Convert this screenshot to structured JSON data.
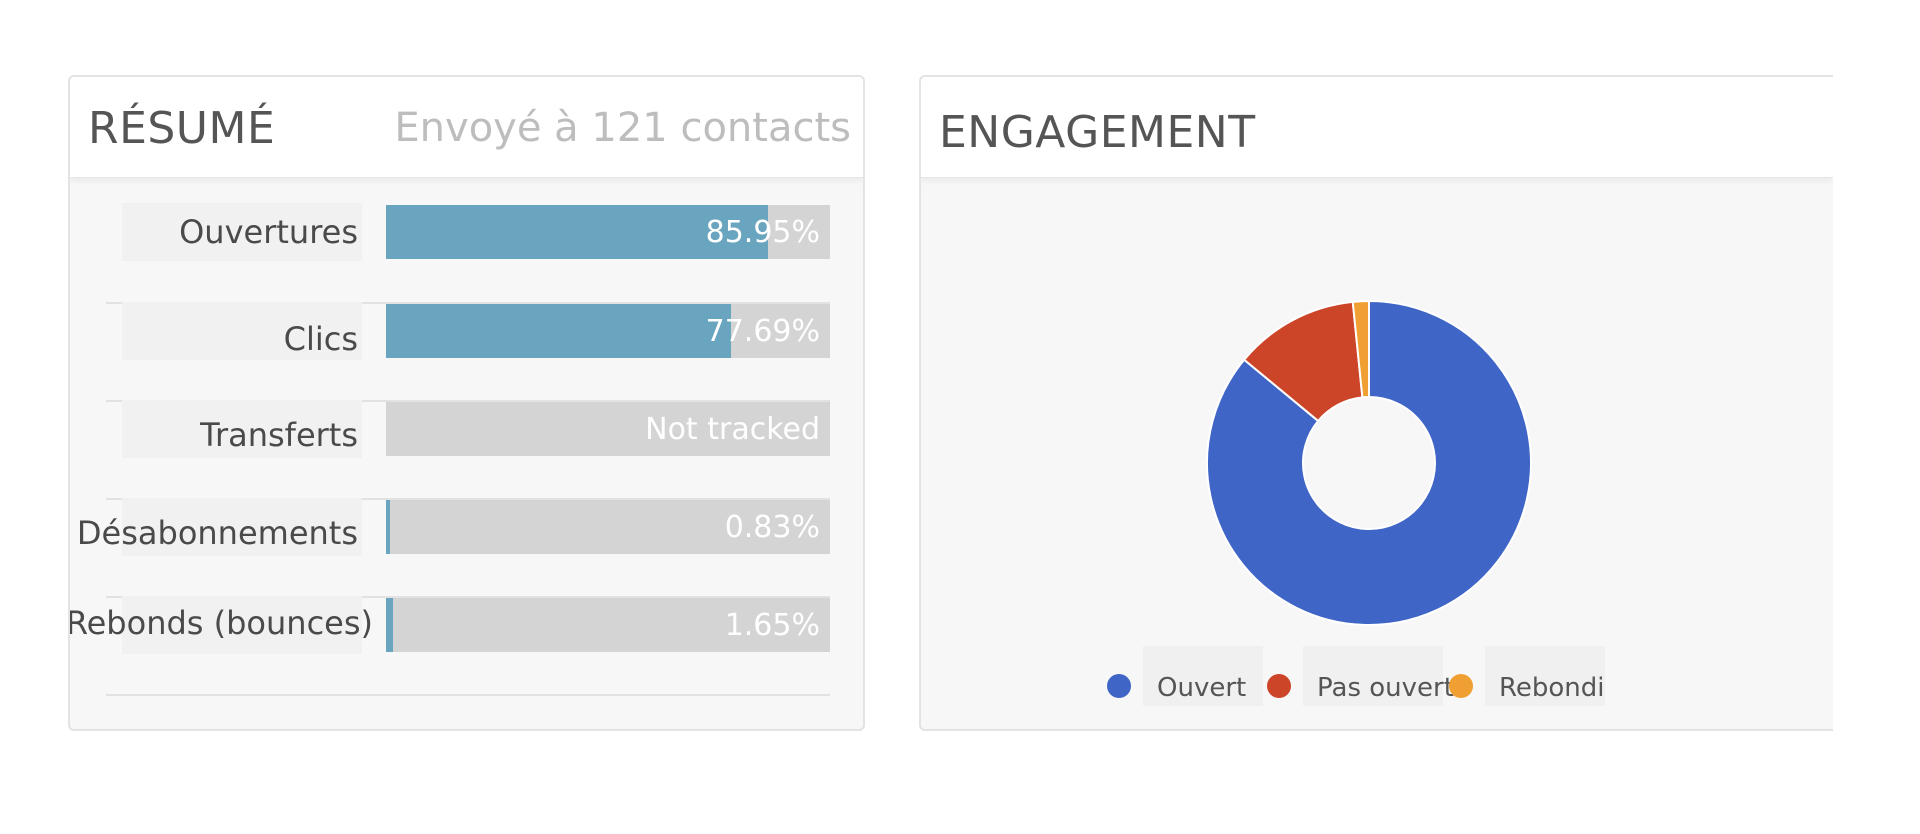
{
  "summary": {
    "title": "RÉSUMÉ",
    "subtitle": "Envoyé à 121 contacts",
    "metrics": [
      {
        "label": "Ouvertures",
        "value_text": "85.95%",
        "fill": 0.8595
      },
      {
        "label": "Clics",
        "value_text": "77.69%",
        "fill": 0.7769
      },
      {
        "label": "Transferts",
        "value_text": "Not tracked",
        "fill": 0
      },
      {
        "label": "Désabonnements",
        "value_text": "0.83%",
        "fill": 0.0083
      },
      {
        "label": "Rebonds (bounces)",
        "value_text": "1.65%",
        "fill": 0.0165
      }
    ]
  },
  "engagement": {
    "title": "ENGAGEMENT"
  },
  "chart_data": {
    "type": "pie",
    "donut": true,
    "categories": [
      "Ouvert",
      "Pas ouvert",
      "Rebondi"
    ],
    "values": [
      86.0,
      12.4,
      1.6
    ],
    "colors": [
      "#3f66c7",
      "#cc4528",
      "#f0a033"
    ],
    "legend": "bottom"
  }
}
